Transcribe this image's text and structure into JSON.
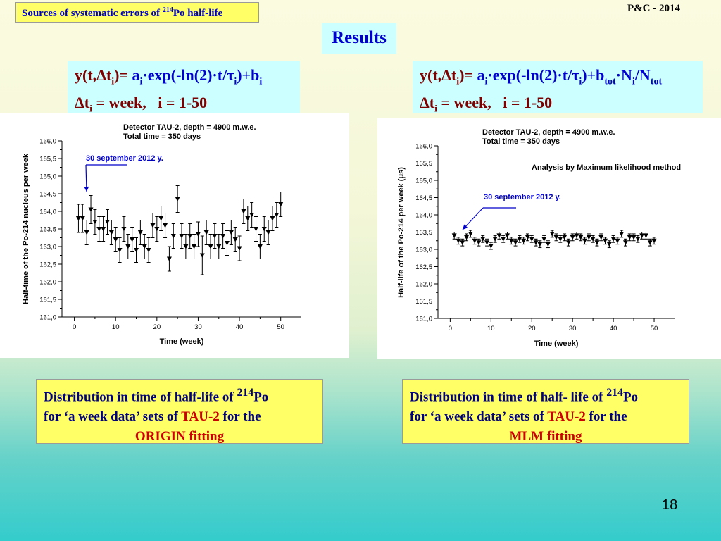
{
  "slide": {
    "title_text": "Sources of systematic errors of ",
    "title_sup": "214",
    "title_tail": "Po half-life",
    "conference": "P&C - 2014",
    "results_label": "Results",
    "page_number": "18"
  },
  "formula_left": {
    "line1_html": "y(t,Δt<sub>i</sub>)= <span class=\"blue\">a<sub>i</sub>·exp(-ln(2)·t/τ<sub>i</sub>)+b<sub>i</sub></span>",
    "line2_html": "Δt<sub>i</sub> = week,&nbsp;&nbsp; i = 1-50"
  },
  "formula_right": {
    "line1_html": "y(t,Δt<sub>i</sub>)= <span class=\"blue\">a<sub>i</sub>·exp(-ln(2)·t/τ<sub>i</sub>)+b<sub>tot</sub>·N<sub>i</sub>/N<sub>tot</sub></span>",
    "line2_html": "Δt<sub>i</sub> = week,&nbsp;&nbsp; i = 1-50"
  },
  "caption_left": {
    "line1_html": "Distribution in time of half-life of <sup>214</sup>Po",
    "line2_html": "for ‘a week data’ sets of <span class=\"red\">TAU-2</span> for the",
    "line3": "ORIGIN fitting"
  },
  "caption_right": {
    "line1_html": "Distribution in time of half- life of <sup>214</sup>Po",
    "line2_html": "for ‘a week data’ sets of <span class=\"red\">TAU-2</span> for the",
    "line3": "MLM fitting"
  },
  "chart_data": [
    {
      "type": "scatter",
      "title_lines": [
        "Detector TAU-2, depth = 4900 m.w.e.",
        "Total time = 350 days"
      ],
      "xlabel": "Time (week)",
      "ylabel": "Half-time of the Po-214 nucleus per week",
      "xlim": [
        -3,
        55
      ],
      "ylim": [
        161.0,
        166.0
      ],
      "xticks": [
        0,
        10,
        20,
        30,
        40,
        50
      ],
      "yticks": [
        "161,0",
        "161,5",
        "162,0",
        "162,5",
        "163,0",
        "163,5",
        "164,0",
        "164,5",
        "165,0",
        "165,5",
        "166,0"
      ],
      "annotation": "30 september 2012 y.",
      "annotation_color": "#0000cc",
      "marker": "triangle-down",
      "x": [
        1,
        2,
        3,
        4,
        5,
        6,
        7,
        8,
        9,
        10,
        11,
        12,
        13,
        14,
        15,
        16,
        17,
        18,
        19,
        20,
        21,
        22,
        23,
        24,
        25,
        26,
        27,
        28,
        29,
        30,
        31,
        32,
        33,
        34,
        35,
        36,
        37,
        38,
        39,
        40,
        41,
        42,
        43,
        44,
        45,
        46,
        47,
        48,
        49,
        50
      ],
      "y": [
        163.8,
        163.8,
        163.4,
        164.05,
        163.7,
        163.5,
        163.5,
        163.7,
        163.4,
        163.2,
        162.9,
        163.5,
        163.0,
        163.2,
        162.9,
        163.4,
        163.0,
        162.9,
        163.6,
        163.5,
        163.8,
        163.6,
        162.65,
        163.3,
        164.35,
        163.3,
        163.0,
        163.3,
        163.0,
        163.35,
        162.75,
        163.4,
        163.0,
        163.3,
        163.0,
        163.3,
        163.1,
        163.4,
        163.2,
        162.95,
        164.0,
        163.8,
        163.9,
        163.5,
        163.0,
        163.5,
        163.4,
        163.8,
        163.9,
        164.2
      ],
      "err": [
        0.4,
        0.4,
        0.35,
        0.4,
        0.35,
        0.35,
        0.35,
        0.35,
        0.35,
        0.35,
        0.35,
        0.35,
        0.35,
        0.35,
        0.35,
        0.35,
        0.35,
        0.35,
        0.35,
        0.35,
        0.35,
        0.35,
        0.35,
        0.35,
        0.38,
        0.35,
        0.35,
        0.35,
        0.35,
        0.35,
        0.55,
        0.35,
        0.35,
        0.35,
        0.35,
        0.35,
        0.35,
        0.35,
        0.35,
        0.35,
        0.35,
        0.35,
        0.35,
        0.35,
        0.35,
        0.35,
        0.35,
        0.35,
        0.35,
        0.35
      ]
    },
    {
      "type": "scatter",
      "title_lines": [
        "Detector TAU-2, depth = 4900 m.w.e.",
        "Total time = 350 days"
      ],
      "method_label": "Analysis by Maximum likelihood method",
      "xlabel": "Time (week)",
      "ylabel": "Half-life of the Po-214  per week (μs)",
      "xlim": [
        -3,
        55
      ],
      "ylim": [
        161.0,
        166.0
      ],
      "xticks": [
        0,
        10,
        20,
        30,
        40,
        50
      ],
      "yticks": [
        "161,0",
        "161,5",
        "162,0",
        "162,5",
        "163,0",
        "163,5",
        "164,0",
        "164,5",
        "165,0",
        "165,5",
        "166,0"
      ],
      "annotation": "30 september 2012 y.",
      "annotation_color": "#0000cc",
      "marker": "triangle-down",
      "x": [
        1,
        2,
        3,
        4,
        5,
        6,
        7,
        8,
        9,
        10,
        11,
        12,
        13,
        14,
        15,
        16,
        17,
        18,
        19,
        20,
        21,
        22,
        23,
        24,
        25,
        26,
        27,
        28,
        29,
        30,
        31,
        32,
        33,
        34,
        35,
        36,
        37,
        38,
        39,
        40,
        41,
        42,
        43,
        44,
        45,
        46,
        47,
        48,
        49,
        50
      ],
      "y": [
        163.4,
        163.25,
        163.2,
        163.35,
        163.45,
        163.25,
        163.2,
        163.3,
        163.2,
        163.1,
        163.3,
        163.4,
        163.3,
        163.4,
        163.25,
        163.2,
        163.3,
        163.25,
        163.35,
        163.3,
        163.2,
        163.15,
        163.3,
        163.15,
        163.45,
        163.35,
        163.3,
        163.35,
        163.2,
        163.35,
        163.4,
        163.35,
        163.25,
        163.35,
        163.3,
        163.2,
        163.35,
        163.25,
        163.15,
        163.3,
        163.25,
        163.45,
        163.2,
        163.35,
        163.35,
        163.3,
        163.4,
        163.4,
        163.2,
        163.25
      ],
      "err": [
        0.1,
        0.1,
        0.1,
        0.1,
        0.1,
        0.1,
        0.1,
        0.1,
        0.1,
        0.1,
        0.1,
        0.1,
        0.1,
        0.1,
        0.1,
        0.1,
        0.1,
        0.1,
        0.1,
        0.1,
        0.1,
        0.1,
        0.1,
        0.1,
        0.1,
        0.1,
        0.1,
        0.1,
        0.1,
        0.1,
        0.1,
        0.1,
        0.1,
        0.1,
        0.1,
        0.1,
        0.1,
        0.1,
        0.1,
        0.1,
        0.1,
        0.1,
        0.1,
        0.1,
        0.1,
        0.1,
        0.1,
        0.1,
        0.1,
        0.1
      ]
    }
  ]
}
